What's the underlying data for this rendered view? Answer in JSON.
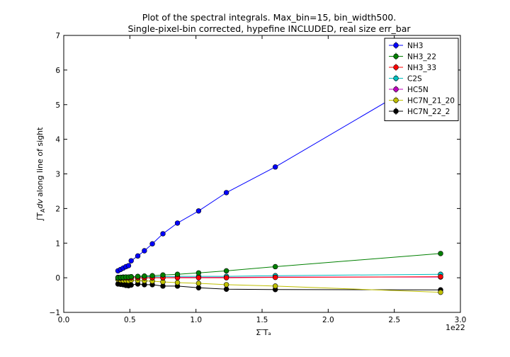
{
  "chart_data": {
    "type": "scatter",
    "title_lines": [
      "Plot of the spectral integrals. Max_bin=15, bin_width500.",
      "Single-pixel-bin corrected, hypefine INCLUDED, real size err_bar"
    ],
    "xlabel": "Σ ̅Tₐ",
    "ylabel_integral": "∫T",
    "ylabel_sub": "A",
    "ylabel_dv": "dv",
    "ylabel_text": "along line of sight",
    "x_offset_label": "1e22",
    "xlim": [
      0.0,
      3.0
    ],
    "ylim": [
      -1,
      7
    ],
    "x_ticks": [
      "0.0",
      "0.5",
      "1.0",
      "1.5",
      "2.0",
      "2.5",
      "3.0"
    ],
    "y_ticks": [
      "−1",
      "0",
      "1",
      "2",
      "3",
      "4",
      "5",
      "6",
      "7"
    ],
    "x_tick_values": [
      0.0,
      0.5,
      1.0,
      1.5,
      2.0,
      2.5,
      3.0
    ],
    "y_tick_values": [
      -1,
      0,
      1,
      2,
      3,
      4,
      5,
      6,
      7
    ],
    "grid": false,
    "legend_position": "top-right",
    "x": [
      0.41,
      0.43,
      0.45,
      0.47,
      0.49,
      0.51,
      0.56,
      0.61,
      0.67,
      0.75,
      0.86,
      1.02,
      1.23,
      1.6,
      2.85
    ],
    "series": [
      {
        "name": "NH3",
        "color": "#0000ff",
        "values": [
          0.2,
          0.24,
          0.28,
          0.32,
          0.35,
          0.49,
          0.63,
          0.78,
          0.98,
          1.27,
          1.58,
          1.93,
          2.46,
          3.2,
          6.0
        ]
      },
      {
        "name": "NH3_22",
        "color": "#008000",
        "values": [
          0.0,
          0.01,
          0.01,
          0.02,
          0.02,
          0.03,
          0.04,
          0.05,
          0.06,
          0.08,
          0.1,
          0.14,
          0.2,
          0.32,
          0.7
        ]
      },
      {
        "name": "NH3_33",
        "color": "#ff0000",
        "values": [
          0.0,
          0.0,
          0.0,
          0.0,
          0.0,
          0.0,
          0.0,
          0.0,
          0.0,
          0.0,
          0.0,
          0.0,
          0.0,
          0.01,
          0.03
        ]
      },
      {
        "name": "C2S",
        "color": "#00bfbf",
        "values": [
          0.01,
          0.01,
          0.02,
          0.02,
          0.02,
          0.03,
          0.03,
          0.03,
          0.03,
          0.03,
          0.04,
          0.04,
          0.04,
          0.06,
          0.1
        ]
      },
      {
        "name": "HC5N",
        "color": "#bf00bf",
        "values": [
          -0.01,
          -0.01,
          0.0,
          0.0,
          0.0,
          0.0,
          0.0,
          0.0,
          0.0,
          0.0,
          0.01,
          0.01,
          0.01,
          0.02,
          0.02
        ]
      },
      {
        "name": "HC7N_21_20",
        "color": "#bfbf00",
        "values": [
          -0.05,
          -0.07,
          -0.08,
          -0.08,
          -0.09,
          -0.07,
          -0.08,
          -0.09,
          -0.1,
          -0.12,
          -0.14,
          -0.16,
          -0.2,
          -0.24,
          -0.42
        ]
      },
      {
        "name": "HC7N_22_2",
        "color": "#000000",
        "values": [
          -0.18,
          -0.19,
          -0.2,
          -0.22,
          -0.23,
          -0.21,
          -0.18,
          -0.2,
          -0.2,
          -0.24,
          -0.24,
          -0.29,
          -0.33,
          -0.34,
          -0.35
        ]
      }
    ]
  }
}
